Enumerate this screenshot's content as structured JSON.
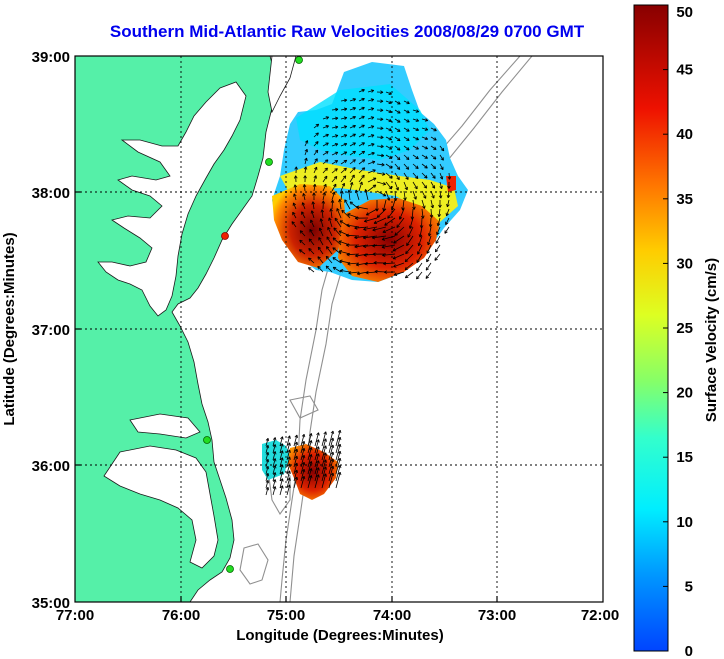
{
  "title": "Southern Mid-Atlantic Raw Velocities 2008/08/29 0700 GMT",
  "map": {
    "type": "surface current map",
    "xlabel": "Longitude (Degrees:Minutes)",
    "ylabel": "Latitude (Degrees:Minutes)",
    "lon_range": [
      -77,
      -72
    ],
    "lat_range": [
      35,
      39
    ],
    "x_ticks": [
      "77:00",
      "76:00",
      "75:00",
      "74:00",
      "73:00",
      "72:00"
    ],
    "y_ticks": [
      "35:00",
      "36:00",
      "37:00",
      "38:00",
      "39:00"
    ],
    "grid": true,
    "land_color": "#55f0a8",
    "bathymetry_color": "#909090",
    "station_color": "#22dd22"
  },
  "colorbar": {
    "label": "Surface Velocity (cm/s)",
    "min": 0,
    "max": 50,
    "ticks": [
      "0",
      "5",
      "10",
      "15",
      "20",
      "25",
      "30",
      "35",
      "40",
      "45",
      "50"
    ]
  }
}
